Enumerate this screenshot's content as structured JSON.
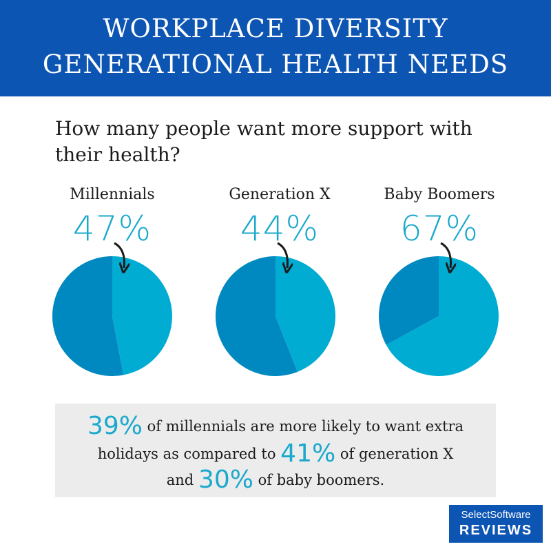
{
  "header": {
    "line1": "WORKPLACE DIVERSITY",
    "line2": "GENERATIONAL HEALTH NEEDS"
  },
  "question": "How many people want more support with their health?",
  "chart_data": {
    "type": "pie",
    "title": "How many people want more support with their health?",
    "series": [
      {
        "name": "Millennials",
        "label": "47%",
        "value": 47
      },
      {
        "name": "Generation X",
        "label": "44%",
        "value": 44
      },
      {
        "name": "Baby Boomers",
        "label": "67%",
        "value": 67
      }
    ],
    "colors": {
      "highlight": "#00acd2",
      "remainder": "#0089c0",
      "arrow": "#1b1b1b"
    }
  },
  "footnote": {
    "p1": "39%",
    "t1": " of millennials are more likely to want extra",
    "t2": "holidays as compared to ",
    "p2": "41%",
    "t3": " of generation X",
    "t4": "and ",
    "p3": "30%",
    "t5": " of baby boomers."
  },
  "brand": {
    "line1": "SelectSoftware",
    "line2": "REVIEWS"
  },
  "colors": {
    "banner": "#0d55b3",
    "accent": "#1aa9cc",
    "box": "#ececec"
  }
}
